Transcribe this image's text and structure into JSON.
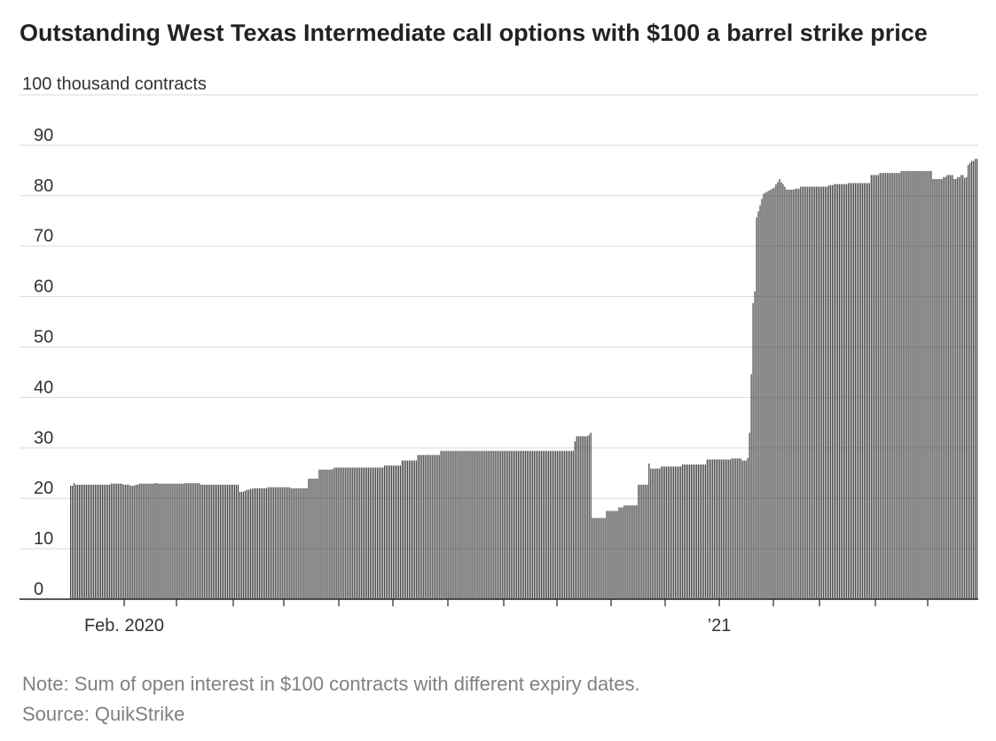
{
  "title": "Outstanding West Texas Intermediate call options with $100 a barrel strike price",
  "note": "Note: Sum of open interest in $100 contracts with different expiry dates.",
  "source": "Source: QuikStrike",
  "chart_data": {
    "type": "bar",
    "unit_label": "100 thousand contracts",
    "ylim": [
      0,
      100
    ],
    "yticks": [
      0,
      10,
      20,
      30,
      40,
      50,
      60,
      70,
      80,
      90
    ],
    "grid": true,
    "bar_color": "#444444",
    "grid_color": "#d9d9d9",
    "x_tick_labels": [
      "Feb. 2020",
      "’21"
    ],
    "values": [
      22.5,
      22.5,
      23.0,
      22.7,
      22.7,
      22.7,
      22.7,
      22.7,
      22.7,
      22.7,
      22.7,
      22.7,
      22.7,
      22.7,
      22.7,
      22.7,
      22.7,
      22.7,
      22.7,
      22.7,
      22.7,
      22.7,
      22.7,
      22.9,
      22.9,
      22.9,
      22.9,
      22.9,
      22.9,
      22.9,
      22.7,
      22.7,
      22.7,
      22.7,
      22.5,
      22.5,
      22.5,
      22.7,
      22.7,
      22.9,
      22.9,
      22.9,
      22.9,
      22.9,
      22.9,
      22.9,
      22.9,
      22.9,
      23.0,
      23.0,
      22.9,
      22.9,
      22.9,
      22.9,
      22.9,
      22.9,
      22.9,
      22.9,
      22.9,
      22.9,
      22.9,
      22.9,
      22.9,
      22.9,
      22.9,
      23.0,
      23.0,
      23.0,
      23.0,
      23.0,
      23.0,
      23.0,
      23.0,
      23.0,
      22.7,
      22.7,
      22.7,
      22.7,
      22.7,
      22.7,
      22.7,
      22.7,
      22.7,
      22.7,
      22.7,
      22.7,
      22.7,
      22.7,
      22.7,
      22.7,
      22.7,
      22.7,
      22.7,
      22.7,
      22.7,
      22.7,
      21.3,
      21.3,
      21.3,
      21.5,
      21.7,
      21.7,
      21.9,
      21.9,
      22.0,
      22.0,
      22.0,
      22.0,
      22.0,
      22.0,
      22.0,
      22.0,
      22.2,
      22.2,
      22.2,
      22.2,
      22.2,
      22.2,
      22.2,
      22.2,
      22.2,
      22.2,
      22.2,
      22.2,
      22.2,
      22.0,
      22.0,
      22.0,
      22.0,
      22.0,
      22.0,
      22.0,
      22.0,
      22.0,
      22.0,
      23.9,
      23.9,
      23.9,
      23.9,
      23.9,
      23.9,
      25.7,
      25.7,
      25.7,
      25.7,
      25.7,
      25.7,
      25.7,
      25.7,
      25.9,
      26.1,
      26.1,
      26.1,
      26.1,
      26.1,
      26.1,
      26.1,
      26.1,
      26.1,
      26.1,
      26.1,
      26.1,
      26.1,
      26.1,
      26.1,
      26.1,
      26.1,
      26.1,
      26.1,
      26.1,
      26.1,
      26.1,
      26.1,
      26.1,
      26.1,
      26.1,
      26.1,
      26.1,
      26.5,
      26.5,
      26.5,
      26.5,
      26.5,
      26.5,
      26.5,
      26.5,
      26.5,
      26.5,
      27.5,
      27.5,
      27.5,
      27.5,
      27.5,
      27.5,
      27.5,
      27.5,
      27.5,
      28.6,
      28.6,
      28.6,
      28.6,
      28.6,
      28.6,
      28.6,
      28.6,
      28.6,
      28.6,
      28.6,
      28.6,
      28.6,
      29.4,
      29.4,
      29.4,
      29.4,
      29.4,
      29.4,
      29.4,
      29.4,
      29.4,
      29.4,
      29.4,
      29.4,
      29.4,
      29.4,
      29.4,
      29.4,
      29.4,
      29.4,
      29.4,
      29.4,
      29.4,
      29.4,
      29.4,
      29.4,
      29.4,
      29.4,
      29.4,
      29.4,
      29.4,
      29.4,
      29.4,
      29.4,
      29.4,
      29.4,
      29.4,
      29.4,
      29.4,
      29.4,
      29.4,
      29.4,
      29.4,
      29.4,
      29.4,
      29.4,
      29.4,
      29.4,
      29.4,
      29.4,
      29.4,
      29.4,
      29.4,
      29.4,
      29.4,
      29.4,
      29.4,
      29.4,
      29.4,
      29.4,
      29.4,
      29.4,
      29.4,
      29.4,
      29.4,
      29.4,
      29.4,
      29.4,
      29.4,
      29.4,
      29.4,
      29.4,
      29.4,
      29.4,
      29.4,
      29.4,
      29.4,
      29.4,
      31.3,
      32.3,
      32.3,
      32.3,
      32.3,
      32.3,
      32.3,
      32.3,
      32.6,
      33.0,
      16.1,
      16.1,
      16.1,
      16.1,
      16.1,
      16.1,
      16.1,
      16.1,
      17.5,
      17.5,
      17.5,
      17.5,
      17.5,
      17.5,
      17.5,
      18.2,
      18.2,
      18.2,
      18.6,
      18.6,
      18.6,
      18.6,
      18.6,
      18.6,
      18.6,
      18.6,
      22.7,
      22.7,
      22.7,
      22.7,
      22.7,
      22.7,
      26.9,
      25.9,
      25.9,
      25.9,
      25.9,
      25.9,
      25.9,
      26.3,
      26.3,
      26.3,
      26.3,
      26.3,
      26.3,
      26.3,
      26.3,
      26.3,
      26.3,
      26.3,
      26.3,
      26.7,
      26.7,
      26.7,
      26.7,
      26.7,
      26.7,
      26.7,
      26.7,
      26.7,
      26.7,
      26.7,
      26.7,
      26.7,
      26.7,
      27.7,
      27.7,
      27.7,
      27.7,
      27.7,
      27.7,
      27.7,
      27.7,
      27.7,
      27.7,
      27.7,
      27.7,
      27.7,
      27.7,
      27.9,
      27.9,
      27.9,
      27.9,
      27.9,
      27.9,
      27.5,
      27.5,
      27.5,
      28.0,
      33.0,
      44.6,
      58.7,
      61.0,
      75.7,
      76.9,
      78.1,
      79.4,
      80.4,
      80.6,
      80.8,
      81.0,
      81.2,
      81.4,
      81.6,
      82.3,
      82.7,
      83.3,
      82.7,
      82.3,
      81.8,
      81.2,
      81.2,
      81.2,
      81.2,
      81.2,
      81.4,
      81.4,
      81.4,
      81.8,
      81.8,
      81.8,
      81.8,
      81.8,
      81.8,
      81.8,
      81.8,
      81.8,
      81.8,
      81.8,
      81.8,
      81.8,
      81.8,
      81.8,
      81.8,
      82.1,
      82.1,
      82.1,
      82.3,
      82.3,
      82.3,
      82.3,
      82.3,
      82.3,
      82.3,
      82.3,
      82.5,
      82.5,
      82.5,
      82.5,
      82.5,
      82.5,
      82.5,
      82.5,
      82.5,
      82.5,
      82.5,
      82.5,
      82.5,
      84.1,
      84.1,
      84.1,
      84.1,
      84.1,
      84.5,
      84.5,
      84.5,
      84.5,
      84.5,
      84.5,
      84.5,
      84.5,
      84.5,
      84.5,
      84.5,
      84.5,
      84.9,
      84.9,
      84.9,
      84.9,
      84.9,
      84.9,
      84.9,
      84.9,
      84.9,
      84.9,
      84.9,
      84.9,
      84.9,
      84.9,
      84.9,
      84.9,
      84.9,
      84.9,
      83.3,
      83.3,
      83.3,
      83.3,
      83.3,
      83.3,
      83.7,
      83.7,
      84.1,
      84.1,
      84.1,
      84.1,
      83.3,
      83.3,
      83.7,
      83.7,
      84.1,
      84.1,
      83.5,
      83.7,
      86.1,
      86.5,
      86.9,
      86.9,
      87.3,
      87.3
    ]
  }
}
